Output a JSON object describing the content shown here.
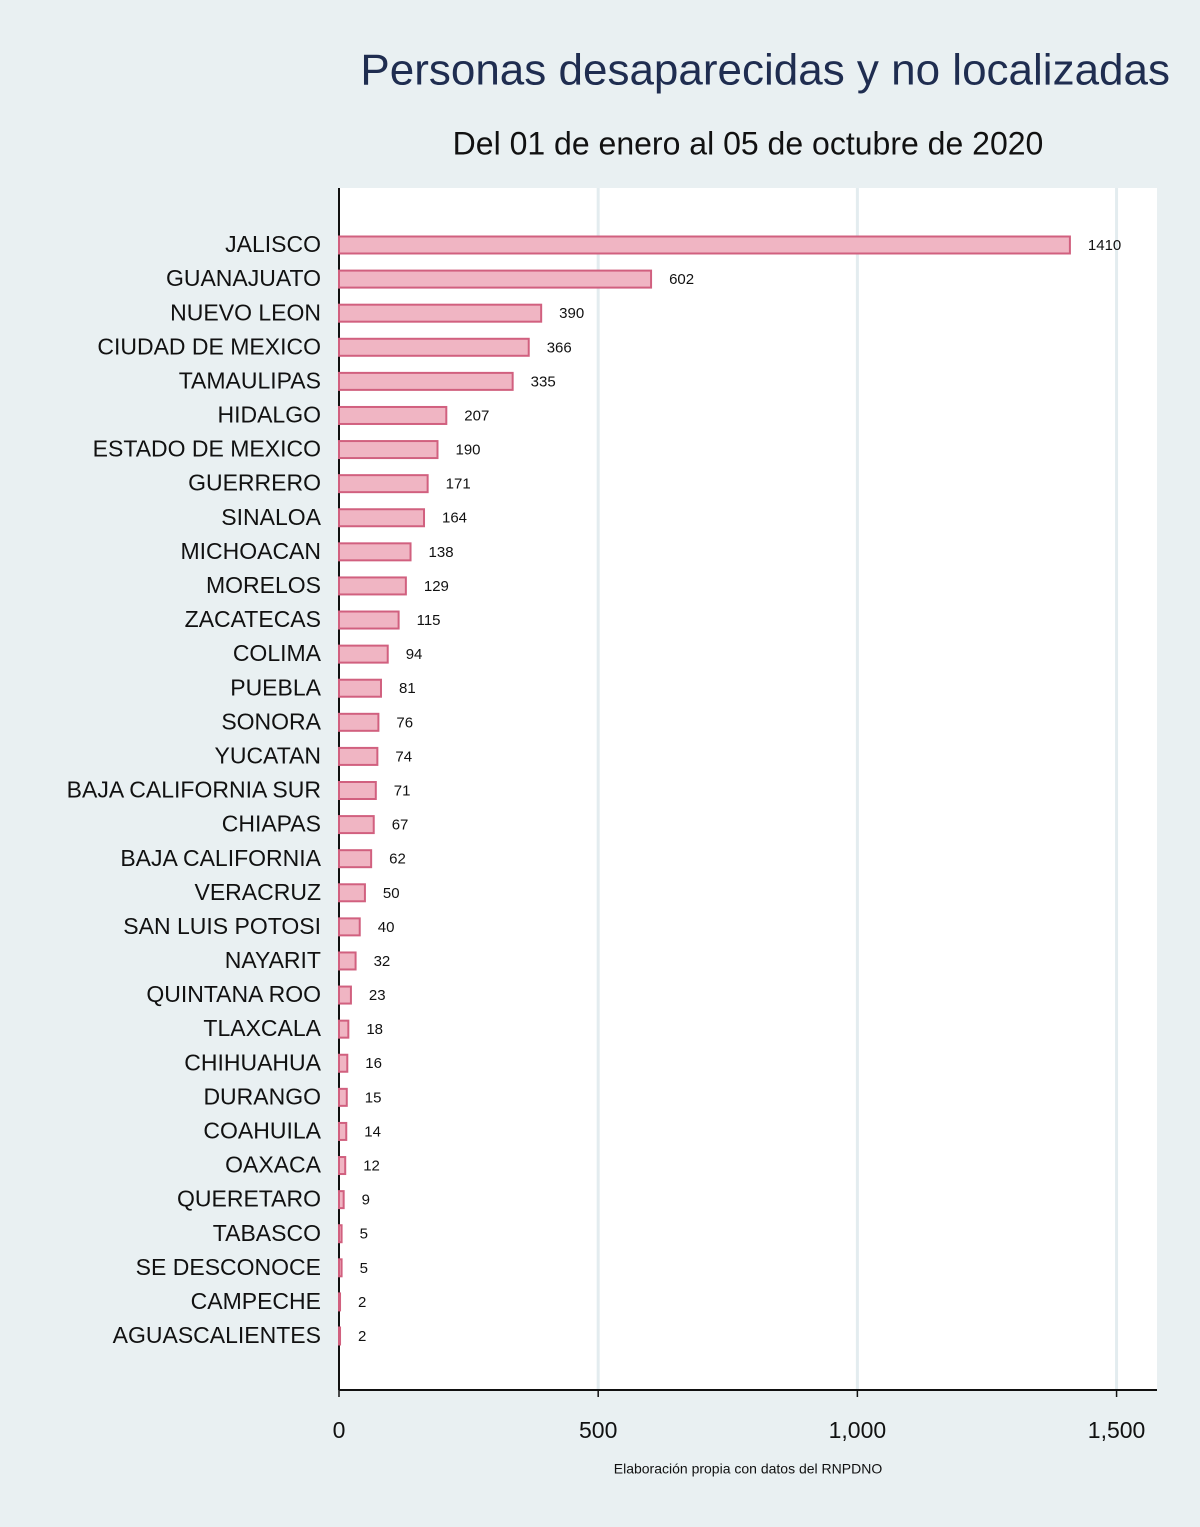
{
  "chart_data": {
    "type": "barh",
    "title": "Personas desaparecidas y no localizadas",
    "subtitle": "Del 01 de enero al 05 de octubre de 2020",
    "note": "Elaboración propia con datos del RNPDNO",
    "categories": [
      "JALISCO",
      "GUANAJUATO",
      "NUEVO LEON",
      "CIUDAD DE MEXICO",
      "TAMAULIPAS",
      "HIDALGO",
      "ESTADO DE MEXICO",
      "GUERRERO",
      "SINALOA",
      "MICHOACAN",
      "MORELOS",
      "ZACATECAS",
      "COLIMA",
      "PUEBLA",
      "SONORA",
      "YUCATAN",
      "BAJA CALIFORNIA SUR",
      "CHIAPAS",
      "BAJA CALIFORNIA",
      "VERACRUZ",
      "SAN LUIS POTOSI",
      "NAYARIT",
      "QUINTANA ROO",
      "TLAXCALA",
      "CHIHUAHUA",
      "DURANGO",
      "COAHUILA",
      "OAXACA",
      "QUERETARO",
      "TABASCO",
      "SE DESCONOCE",
      "CAMPECHE",
      "AGUASCALIENTES"
    ],
    "values": [
      1410,
      602,
      390,
      366,
      335,
      207,
      190,
      171,
      164,
      138,
      129,
      115,
      94,
      81,
      76,
      74,
      71,
      67,
      62,
      50,
      40,
      32,
      23,
      18,
      16,
      15,
      14,
      12,
      9,
      5,
      5,
      2,
      2
    ],
    "color": "#f0b5c3",
    "edge_color": "#d1607f",
    "xlim": [
      0,
      1578
    ],
    "xticks": [
      0,
      500,
      {
        "value": 1000,
        "label": "1,000"
      },
      {
        "value": 1500,
        "label": "1,500"
      }
    ],
    "grid": true
  }
}
